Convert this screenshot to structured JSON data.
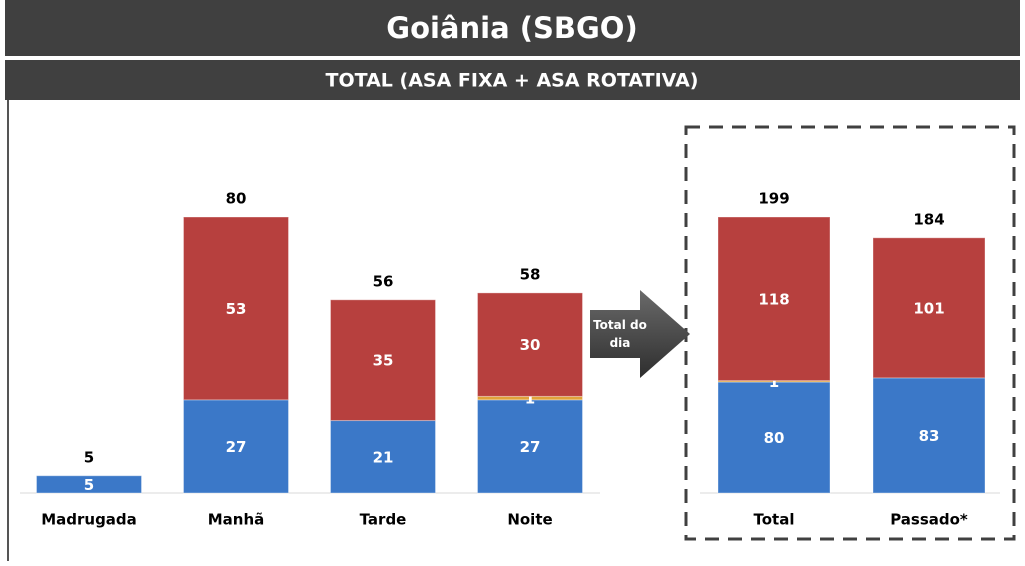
{
  "header": {
    "title": "Goiânia (SBGO)",
    "subtitle": "TOTAL (ASA FIXA + ASA ROTATIVA)"
  },
  "annotation": "Total do dia",
  "chart_data": [
    {
      "type": "bar",
      "stacked": true,
      "categories": [
        "Madrugada",
        "Manhã",
        "Tarde",
        "Noite"
      ],
      "series": [
        {
          "color": "#3b78c8",
          "values": [
            5,
            27,
            21,
            27
          ]
        },
        {
          "color": "#e0a23a",
          "values": [
            null,
            null,
            null,
            1
          ]
        },
        {
          "color": "#b7403e",
          "values": [
            null,
            53,
            35,
            30
          ]
        }
      ],
      "totals": [
        5,
        80,
        56,
        58
      ]
    },
    {
      "type": "bar",
      "stacked": true,
      "categories": [
        "Total",
        "Passado*"
      ],
      "series": [
        {
          "color": "#3b78c8",
          "values": [
            80,
            83
          ]
        },
        {
          "color": "#e0a23a",
          "values": [
            1,
            null
          ]
        },
        {
          "color": "#b7403e",
          "values": [
            118,
            101
          ]
        }
      ],
      "totals": [
        199,
        184
      ]
    }
  ]
}
